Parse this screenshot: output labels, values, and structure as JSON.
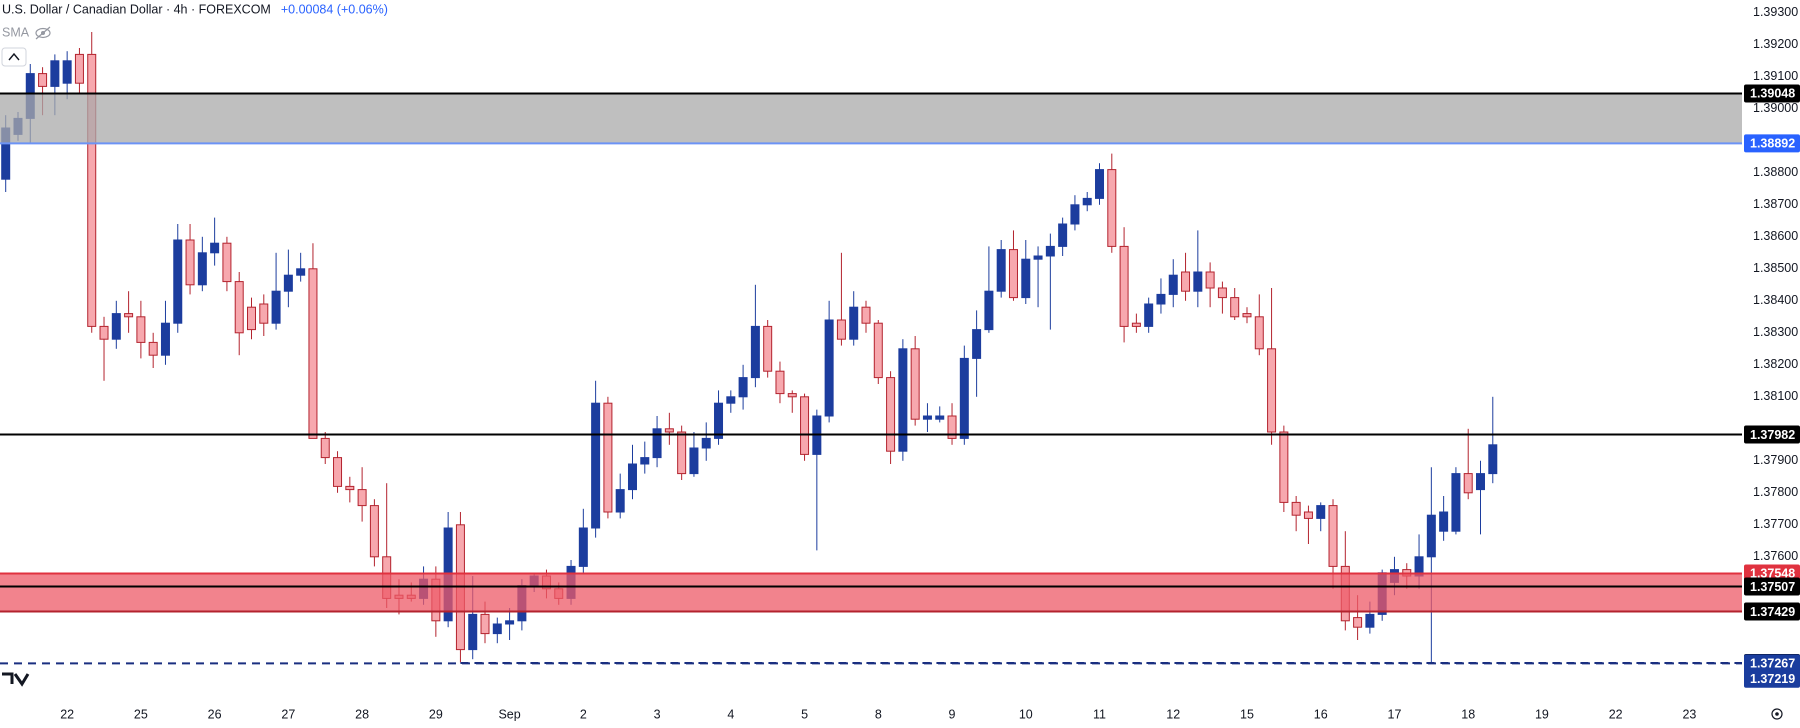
{
  "header": {
    "title": "U.S. Dollar / Canadian Dollar · 4h · FOREXCOM",
    "change": "+0.00084 (+0.06%)",
    "indicator": "SMA"
  },
  "chart_data": {
    "type": "candlestick",
    "categories": [
      null,
      null,
      null,
      null,
      null,
      "22",
      null,
      null,
      null,
      null,
      null,
      "25",
      null,
      null,
      null,
      null,
      null,
      "26",
      null,
      null,
      null,
      null,
      null,
      "27",
      null,
      null,
      null,
      null,
      null,
      "28",
      null,
      null,
      null,
      null,
      null,
      "29",
      null,
      null,
      null,
      null,
      null,
      "Sep",
      null,
      null,
      null,
      null,
      null,
      "2",
      null,
      null,
      null,
      null,
      null,
      "3",
      null,
      null,
      null,
      null,
      null,
      "4",
      null,
      null,
      null,
      null,
      null,
      "5",
      null,
      null,
      null,
      null,
      null,
      "8",
      null,
      null,
      null,
      null,
      null,
      "9",
      null,
      null,
      null,
      null,
      null,
      "10",
      null,
      null,
      null,
      null,
      null,
      "11",
      null,
      null,
      null,
      null,
      null,
      "12",
      null,
      null,
      null,
      null,
      null,
      "15",
      null,
      null,
      null,
      null,
      null,
      "16",
      null,
      null,
      null,
      null,
      null,
      "17",
      null,
      null,
      null,
      null,
      null,
      "18",
      null,
      null,
      null,
      null,
      null,
      "19",
      null,
      null,
      null,
      null,
      null,
      "22",
      null,
      null,
      null,
      null,
      null,
      "23"
    ],
    "open": [
      1.3878,
      1.3892,
      1.3897,
      1.3911,
      1.3907,
      1.3908,
      1.3917,
      1.3917,
      1.3832,
      1.3828,
      1.3836,
      1.3835,
      1.3827,
      1.3823,
      1.3833,
      1.3859,
      1.3845,
      1.3855,
      1.3858,
      1.3846,
      1.3838,
      1.3839,
      1.3833,
      1.3843,
      1.3848,
      1.385,
      1.3797,
      1.3791,
      1.3782,
      1.3781,
      1.3776,
      1.376,
      1.3748,
      1.3748,
      1.3747,
      1.3753,
      1.374,
      1.377,
      1.3731,
      1.3742,
      1.3736,
      1.3739,
      1.374,
      1.3751,
      1.3754,
      1.375,
      1.3747,
      1.3757,
      1.3769,
      1.3808,
      1.3774,
      1.3781,
      1.3789,
      1.3791,
      1.38,
      1.3799,
      1.3786,
      1.3794,
      1.3797,
      1.3808,
      1.381,
      1.3816,
      1.3832,
      1.3818,
      1.3811,
      1.381,
      1.3792,
      1.3804,
      1.3834,
      1.3828,
      1.3838,
      1.3833,
      1.3816,
      1.3793,
      1.3825,
      1.3803,
      1.3803,
      1.3804,
      1.3797,
      1.3822,
      1.3831,
      1.3843,
      1.3856,
      1.3841,
      1.3853,
      1.3854,
      1.3857,
      1.3864,
      1.387,
      1.3872,
      1.3881,
      1.3857,
      1.3833,
      1.3832,
      1.3839,
      1.3842,
      1.3849,
      1.3843,
      1.3849,
      1.3844,
      1.3841,
      1.3836,
      1.3835,
      1.3825,
      1.3799,
      1.3777,
      1.3774,
      1.3772,
      1.3776,
      1.3757,
      1.3741,
      1.3738,
      1.3742,
      1.3752,
      1.3756,
      1.3754,
      1.376,
      1.3768,
      1.3768,
      1.3786,
      1.3781,
      1.3786,
      null,
      null,
      null,
      null,
      null,
      null,
      null,
      null,
      null,
      null,
      null,
      null,
      null,
      null,
      null,
      null
    ],
    "high": [
      1.3898,
      1.3899,
      1.3914,
      1.3913,
      1.3917,
      1.3918,
      1.3919,
      1.3924,
      1.3835,
      1.384,
      1.3843,
      1.384,
      1.383,
      1.384,
      1.3864,
      1.3864,
      1.386,
      1.3866,
      1.386,
      1.3849,
      1.3841,
      1.3842,
      1.3855,
      1.3856,
      1.3855,
      1.3858,
      1.3799,
      1.3793,
      1.3785,
      1.3788,
      1.3778,
      1.3783,
      1.3753,
      1.3752,
      1.3757,
      1.3757,
      1.3774,
      1.3774,
      1.3754,
      1.3746,
      1.3741,
      1.3744,
      1.3753,
      1.3755,
      1.3756,
      1.3752,
      1.3759,
      1.3775,
      1.3815,
      1.381,
      1.3786,
      1.3795,
      1.3796,
      1.3804,
      1.3805,
      1.3801,
      1.3799,
      1.3802,
      1.3812,
      1.3812,
      1.382,
      1.3845,
      1.3834,
      1.3821,
      1.3812,
      1.3811,
      1.3806,
      1.384,
      1.3855,
      1.3843,
      1.384,
      1.3834,
      1.3818,
      1.3828,
      1.3829,
      1.3808,
      1.3807,
      1.3808,
      1.3826,
      1.3837,
      1.3857,
      1.3859,
      1.3862,
      1.3859,
      1.3857,
      1.3861,
      1.3866,
      1.3873,
      1.3874,
      1.3883,
      1.3886,
      1.3863,
      1.3836,
      1.3841,
      1.3847,
      1.3853,
      1.3855,
      1.3862,
      1.3852,
      1.3846,
      1.3844,
      1.3838,
      1.3842,
      1.3844,
      1.3801,
      1.3779,
      1.3776,
      1.3777,
      1.3778,
      1.3768,
      1.3748,
      1.3746,
      1.3756,
      1.376,
      1.3758,
      1.3767,
      1.3788,
      1.3779,
      1.3788,
      1.38,
      1.379,
      1.381,
      null,
      null,
      null,
      null,
      null,
      null,
      null,
      null,
      null,
      null,
      null,
      null,
      null,
      null,
      null,
      null
    ],
    "low": [
      1.3874,
      1.389,
      1.3889,
      1.3898,
      1.3898,
      1.3903,
      1.3905,
      1.383,
      1.3815,
      1.3825,
      1.383,
      1.3822,
      1.3819,
      1.382,
      1.383,
      1.3842,
      1.3843,
      1.3851,
      1.3843,
      1.3823,
      1.3828,
      1.3829,
      1.3831,
      1.3838,
      1.3846,
      1.3797,
      1.3789,
      1.378,
      1.3777,
      1.3771,
      1.3757,
      1.3744,
      1.3742,
      1.3746,
      1.3745,
      1.3735,
      1.3738,
      1.3727,
      1.3728,
      1.3733,
      1.3733,
      1.3734,
      1.3737,
      1.3749,
      1.3747,
      1.3745,
      1.3745,
      1.3755,
      1.3766,
      1.3772,
      1.3772,
      1.3778,
      1.3786,
      1.3788,
      1.3795,
      1.3784,
      1.3785,
      1.379,
      1.3795,
      1.3805,
      1.3806,
      1.3813,
      1.3816,
      1.3808,
      1.3805,
      1.379,
      1.3762,
      1.3802,
      1.3826,
      1.3826,
      1.383,
      1.3814,
      1.3789,
      1.379,
      1.3801,
      1.3799,
      1.3802,
      1.3795,
      1.3795,
      1.381,
      1.383,
      1.3841,
      1.384,
      1.3839,
      1.3838,
      1.3831,
      1.3854,
      1.3862,
      1.3868,
      1.387,
      1.3855,
      1.3827,
      1.383,
      1.383,
      1.3836,
      1.3838,
      1.384,
      1.3838,
      1.3838,
      1.3836,
      1.3834,
      1.3833,
      1.3823,
      1.3795,
      1.3774,
      1.3768,
      1.3764,
      1.3768,
      1.375,
      1.3737,
      1.3734,
      1.3736,
      1.374,
      1.3748,
      1.375,
      1.375,
      1.3727,
      1.3765,
      1.3767,
      1.3778,
      1.3767,
      1.3783,
      null,
      null,
      null,
      null,
      null,
      null,
      null,
      null,
      null,
      null,
      null,
      null,
      null,
      null,
      null,
      null
    ],
    "close": [
      1.3894,
      1.3897,
      1.3911,
      1.3907,
      1.3915,
      1.3915,
      1.3908,
      1.3832,
      1.3828,
      1.3836,
      1.3835,
      1.3827,
      1.3823,
      1.3833,
      1.3859,
      1.3845,
      1.3855,
      1.3858,
      1.3846,
      1.383,
      1.3831,
      1.3833,
      1.3843,
      1.3848,
      1.385,
      1.3797,
      1.3791,
      1.3782,
      1.3781,
      1.3776,
      1.376,
      1.3747,
      1.3747,
      1.3747,
      1.3753,
      1.374,
      1.3769,
      1.3731,
      1.3742,
      1.3736,
      1.3739,
      1.374,
      1.3751,
      1.3754,
      1.375,
      1.3747,
      1.3757,
      1.3769,
      1.3808,
      1.3774,
      1.3781,
      1.3789,
      1.3791,
      1.38,
      1.3799,
      1.3786,
      1.3794,
      1.3797,
      1.3808,
      1.381,
      1.3816,
      1.3832,
      1.3818,
      1.3811,
      1.381,
      1.3792,
      1.3804,
      1.3834,
      1.3828,
      1.3838,
      1.3833,
      1.3816,
      1.3793,
      1.3825,
      1.3803,
      1.3804,
      1.3804,
      1.3797,
      1.3822,
      1.3831,
      1.3843,
      1.3856,
      1.3841,
      1.3853,
      1.3854,
      1.3857,
      1.3864,
      1.387,
      1.3872,
      1.3881,
      1.3857,
      1.3832,
      1.3832,
      1.3839,
      1.3842,
      1.3848,
      1.3843,
      1.3849,
      1.3844,
      1.3841,
      1.3835,
      1.3835,
      1.3825,
      1.3799,
      1.3777,
      1.3773,
      1.3772,
      1.3776,
      1.3757,
      1.374,
      1.3738,
      1.3742,
      1.3755,
      1.3756,
      1.3754,
      1.376,
      1.3773,
      1.3774,
      1.3786,
      1.378,
      1.3786,
      1.3795,
      null,
      null,
      null,
      null,
      null,
      null,
      null,
      null,
      null,
      null,
      null,
      null,
      null,
      null,
      null,
      null
    ],
    "up_color": "#1c3d9e",
    "down_color": "#f7a8ae",
    "down_border": "#b3232e",
    "ylim": [
      1.3714,
      1.3934
    ],
    "yticks": [
      {
        "value": 1.393,
        "label": "1.39300"
      },
      {
        "value": 1.392,
        "label": "1.39200"
      },
      {
        "value": 1.391,
        "label": "1.39100"
      },
      {
        "value": 1.39,
        "label": "1.39000"
      },
      {
        "value": 1.388,
        "label": "1.38800"
      },
      {
        "value": 1.387,
        "label": "1.38700"
      },
      {
        "value": 1.386,
        "label": "1.38600"
      },
      {
        "value": 1.385,
        "label": "1.38500"
      },
      {
        "value": 1.384,
        "label": "1.38400"
      },
      {
        "value": 1.383,
        "label": "1.38300"
      },
      {
        "value": 1.382,
        "label": "1.38200"
      },
      {
        "value": 1.381,
        "label": "1.38100"
      },
      {
        "value": 1.379,
        "label": "1.37900"
      },
      {
        "value": 1.378,
        "label": "1.37800"
      },
      {
        "value": 1.377,
        "label": "1.37700"
      },
      {
        "value": 1.376,
        "label": "1.37600"
      }
    ],
    "zones": [
      {
        "low": 1.38892,
        "high": 1.39048,
        "color": "#a9a9a9"
      },
      {
        "low": 1.37429,
        "high": 1.37548,
        "color": "#ee5a67"
      }
    ],
    "levels": [
      {
        "value": 1.39048,
        "color": "#000000",
        "label_color": "#000000"
      },
      {
        "value": 1.38892,
        "color": "#6c93f5",
        "label_color": "#2962ff"
      },
      {
        "value": 1.37982,
        "color": "#000000",
        "label_color": "#000000"
      },
      {
        "value": 1.37548,
        "color": "#e0323f",
        "label_color": "#e0323f"
      },
      {
        "value": 1.37507,
        "color": "#000000",
        "label_color": "#000000"
      },
      {
        "value": 1.37429,
        "color": "#b3232e",
        "label_color": "#000000"
      },
      {
        "value": 1.37268,
        "color": "#1a2f80",
        "label_color": "#000000",
        "dashed": true,
        "start": 37
      },
      {
        "value": 1.37267,
        "color": "#1a2f80",
        "label_color": "#1a3d9e",
        "dashed": true
      },
      {
        "value": 1.37219,
        "color": "#1a3d9e",
        "label_color": "#1a3d9e",
        "line": false
      }
    ]
  }
}
